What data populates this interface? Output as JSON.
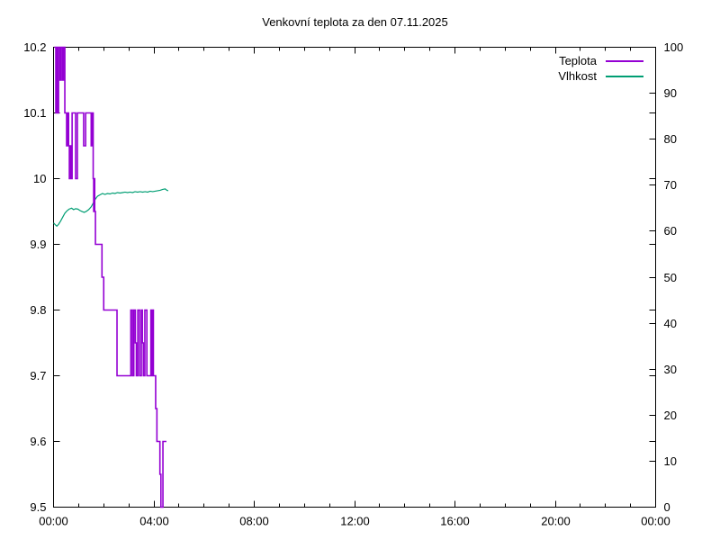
{
  "title": "Venkovní teplota za den 07.11.2025",
  "legend": [
    {
      "label": "Teplota",
      "color": "#9400d3"
    },
    {
      "label": "Vlhkost",
      "color": "#009e73"
    }
  ],
  "chart_data": {
    "type": "line",
    "title": "Venkovní teplota za den 07.11.2025",
    "grid": false,
    "legend_position": "top-right-inside",
    "x": {
      "unit": "time",
      "lim_hours": [
        0,
        24
      ],
      "tick_labels": [
        "00:00",
        "04:00",
        "08:00",
        "12:00",
        "16:00",
        "20:00",
        "00:00"
      ],
      "major_step_hours": 4,
      "minor_step_hours": 1
    },
    "y_left": {
      "label": "",
      "lim": [
        9.5,
        10.2
      ],
      "tick_labels": [
        "10.2",
        "10.1",
        "10",
        "9.9",
        "9.8",
        "9.7",
        "9.6",
        "9.5"
      ]
    },
    "y_right": {
      "label": "",
      "lim": [
        0,
        100
      ],
      "tick_labels": [
        "100",
        "90",
        "80",
        "70",
        "60",
        "50",
        "40",
        "30",
        "20",
        "10",
        "0"
      ]
    },
    "series": [
      {
        "name": "Vlhkost",
        "axis": "right",
        "mode": "linear",
        "color": "#009e73",
        "width": 1.2,
        "points": [
          [
            0.0,
            61.8
          ],
          [
            0.07,
            61.4
          ],
          [
            0.13,
            61.1
          ],
          [
            0.2,
            61.5
          ],
          [
            0.28,
            62.2
          ],
          [
            0.37,
            63.1
          ],
          [
            0.45,
            63.9
          ],
          [
            0.53,
            64.4
          ],
          [
            0.62,
            64.8
          ],
          [
            0.72,
            65.0
          ],
          [
            0.8,
            64.7
          ],
          [
            0.88,
            64.9
          ],
          [
            0.97,
            64.8
          ],
          [
            1.05,
            64.5
          ],
          [
            1.13,
            64.3
          ],
          [
            1.22,
            64.1
          ],
          [
            1.3,
            64.3
          ],
          [
            1.4,
            64.7
          ],
          [
            1.5,
            65.3
          ],
          [
            1.58,
            66.1
          ],
          [
            1.67,
            67.0
          ],
          [
            1.75,
            67.6
          ],
          [
            1.85,
            67.9
          ],
          [
            1.95,
            68.2
          ],
          [
            2.05,
            68.0
          ],
          [
            2.15,
            68.2
          ],
          [
            2.25,
            68.1
          ],
          [
            2.35,
            68.3
          ],
          [
            2.45,
            68.2
          ],
          [
            2.55,
            68.4
          ],
          [
            2.65,
            68.3
          ],
          [
            2.75,
            68.4
          ],
          [
            2.85,
            68.5
          ],
          [
            2.95,
            68.4
          ],
          [
            3.05,
            68.5
          ],
          [
            3.15,
            68.4
          ],
          [
            3.25,
            68.6
          ],
          [
            3.35,
            68.5
          ],
          [
            3.45,
            68.6
          ],
          [
            3.55,
            68.5
          ],
          [
            3.65,
            68.6
          ],
          [
            3.75,
            68.5
          ],
          [
            3.85,
            68.7
          ],
          [
            3.95,
            68.6
          ],
          [
            4.05,
            68.7
          ],
          [
            4.15,
            68.8
          ],
          [
            4.25,
            68.9
          ],
          [
            4.35,
            69.1
          ],
          [
            4.45,
            69.2
          ],
          [
            4.52,
            68.9
          ],
          [
            4.57,
            68.8
          ]
        ]
      },
      {
        "name": "Teplota",
        "axis": "left",
        "mode": "steps",
        "color": "#9400d3",
        "width": 1.6,
        "points": [
          [
            0.03,
            10.2
          ],
          [
            0.09,
            10.1
          ],
          [
            0.12,
            10.2
          ],
          [
            0.17,
            10.1
          ],
          [
            0.2,
            10.2
          ],
          [
            0.26,
            10.15
          ],
          [
            0.3,
            10.2
          ],
          [
            0.36,
            10.15
          ],
          [
            0.4,
            10.2
          ],
          [
            0.45,
            10.1
          ],
          [
            0.52,
            10.05
          ],
          [
            0.56,
            10.1
          ],
          [
            0.6,
            10.05
          ],
          [
            0.63,
            10.0
          ],
          [
            0.645,
            10.05
          ],
          [
            0.66,
            10.0
          ],
          [
            0.675,
            10.05
          ],
          [
            0.69,
            10.0
          ],
          [
            0.705,
            10.05
          ],
          [
            0.72,
            10.0
          ],
          [
            0.74,
            10.1
          ],
          [
            0.88,
            10.0
          ],
          [
            0.95,
            10.1
          ],
          [
            1.2,
            10.05
          ],
          [
            1.28,
            10.1
          ],
          [
            1.5,
            10.05
          ],
          [
            1.55,
            10.1
          ],
          [
            1.58,
            10.0
          ],
          [
            1.6,
            9.95
          ],
          [
            1.62,
            10.0
          ],
          [
            1.64,
            9.95
          ],
          [
            1.67,
            9.9
          ],
          [
            1.93,
            9.85
          ],
          [
            2.0,
            9.8
          ],
          [
            2.53,
            9.7
          ],
          [
            3.08,
            9.8
          ],
          [
            3.14,
            9.7
          ],
          [
            3.2,
            9.8
          ],
          [
            3.26,
            9.75
          ],
          [
            3.3,
            9.7
          ],
          [
            3.36,
            9.8
          ],
          [
            3.43,
            9.7
          ],
          [
            3.5,
            9.8
          ],
          [
            3.54,
            9.75
          ],
          [
            3.58,
            9.7
          ],
          [
            3.64,
            9.8
          ],
          [
            3.72,
            9.7
          ],
          [
            3.88,
            9.8
          ],
          [
            3.905,
            9.7
          ],
          [
            3.925,
            9.8
          ],
          [
            3.945,
            9.7
          ],
          [
            3.96,
            9.8
          ],
          [
            3.98,
            9.7
          ],
          [
            4.07,
            9.65
          ],
          [
            4.12,
            9.6
          ],
          [
            4.24,
            9.55
          ],
          [
            4.28,
            9.5
          ],
          [
            4.36,
            9.6
          ],
          [
            4.5,
            9.6
          ]
        ]
      }
    ]
  }
}
